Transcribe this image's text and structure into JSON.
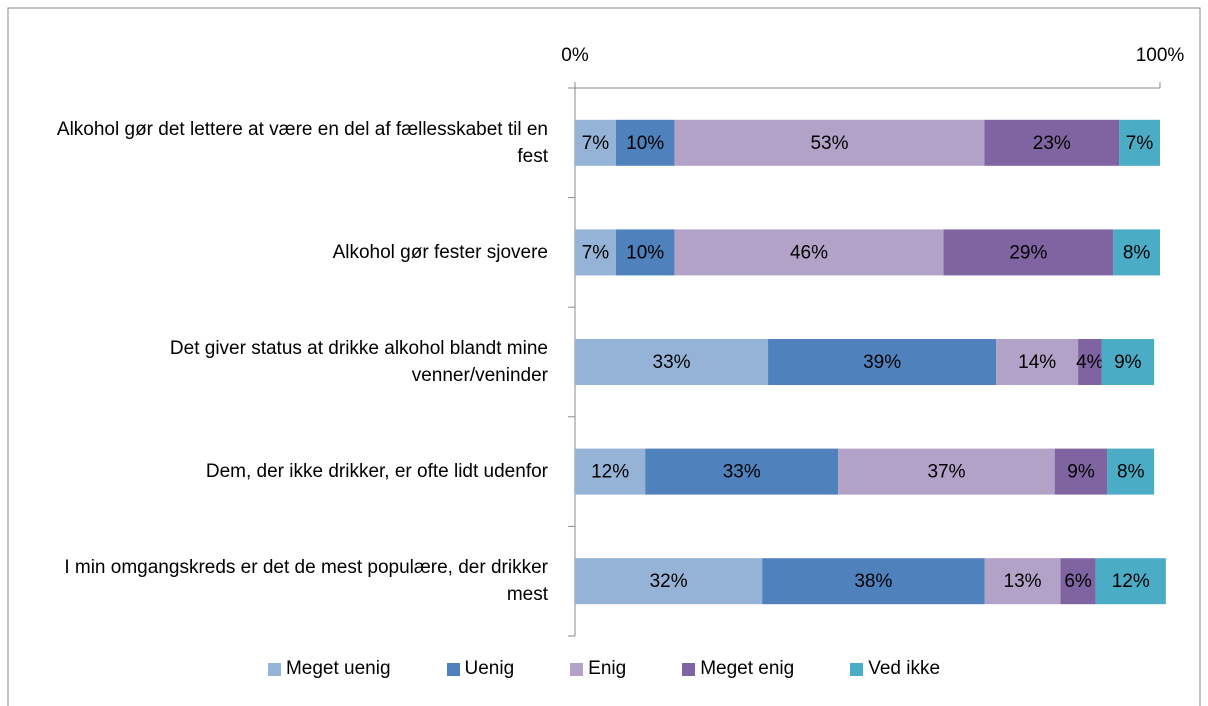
{
  "chart_data": {
    "type": "stacked-bar-horizontal",
    "categories": [
      "Alkohol gør det lettere at være en del af fællesskabet til en fest",
      "Alkohol gør fester sjovere",
      "Det giver status at drikke alkohol blandt mine venner/veninder",
      "Dem, der ikke drikker, er ofte lidt udenfor",
      "I min omgangskreds er det de mest populære, der drikker mest"
    ],
    "series": [
      {
        "name": "Meget uenig",
        "color": "#95b3d7",
        "values": [
          7,
          7,
          33,
          12,
          32
        ],
        "value_labels": [
          "7%",
          "7%",
          "33%",
          "12%",
          "32%"
        ]
      },
      {
        "name": "Uenig",
        "color": "#4f81bd",
        "values": [
          10,
          10,
          39,
          33,
          38
        ],
        "value_labels": [
          "10%",
          "10%",
          "39%",
          "33%",
          "38%"
        ]
      },
      {
        "name": "Enig",
        "color": "#b3a2c7",
        "values": [
          53,
          46,
          14,
          37,
          13
        ],
        "value_labels": [
          "53%",
          "46%",
          "14%",
          "37%",
          "13%"
        ]
      },
      {
        "name": "Meget enig",
        "color": "#8064a2",
        "values": [
          23,
          29,
          4,
          9,
          6
        ],
        "value_labels": [
          "23%",
          "29%",
          "4%",
          "9%",
          "6%"
        ]
      },
      {
        "name": "Ved ikke",
        "color": "#4bacc6",
        "values": [
          7,
          8,
          9,
          8,
          12
        ],
        "value_labels": [
          "7%",
          "8%",
          "9%",
          "8%",
          "12%"
        ]
      }
    ],
    "xlim": [
      0,
      100
    ],
    "xticks": [
      {
        "value": 0,
        "label": "0%"
      },
      {
        "value": 100,
        "label": "100%"
      }
    ],
    "legend": "bottom"
  }
}
